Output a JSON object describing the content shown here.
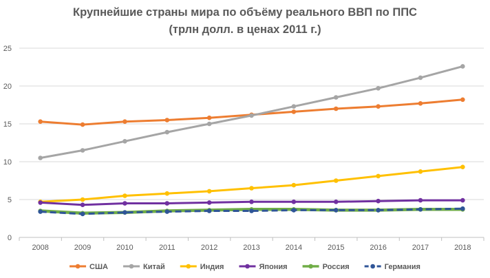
{
  "chart_data": {
    "type": "line",
    "title": "Крупнейшие страны мира по объёму реального ВВП по ППС",
    "subtitle": "(трлн долл. в ценах 2011 г.)",
    "xlabel": "",
    "ylabel": "",
    "x": [
      "2008",
      "2009",
      "2010",
      "2011",
      "2012",
      "2013",
      "2014",
      "2015",
      "2016",
      "2017",
      "2018"
    ],
    "ylim": [
      0,
      25
    ],
    "yticks": [
      "0",
      "5",
      "10",
      "15",
      "20",
      "25"
    ],
    "grid": true,
    "legend_position": "bottom",
    "series": [
      {
        "name": "США",
        "color": "#ED7D31",
        "dash": "solid",
        "width": 3,
        "values": [
          15.3,
          14.9,
          15.3,
          15.5,
          15.8,
          16.2,
          16.6,
          17.0,
          17.3,
          17.7,
          18.2
        ]
      },
      {
        "name": "Китай",
        "color": "#A5A5A5",
        "dash": "solid",
        "width": 3,
        "values": [
          10.5,
          11.5,
          12.7,
          13.9,
          15.0,
          16.1,
          17.3,
          18.5,
          19.7,
          21.1,
          22.6
        ]
      },
      {
        "name": "Индия",
        "color": "#FFC000",
        "dash": "solid",
        "width": 3,
        "values": [
          4.7,
          5.0,
          5.5,
          5.8,
          6.1,
          6.5,
          6.9,
          7.5,
          8.1,
          8.7,
          9.3
        ]
      },
      {
        "name": "Япония",
        "color": "#7030A0",
        "dash": "solid",
        "width": 3,
        "values": [
          4.6,
          4.3,
          4.5,
          4.5,
          4.6,
          4.7,
          4.7,
          4.7,
          4.8,
          4.9,
          4.9
        ]
      },
      {
        "name": "Россия",
        "color": "#70AD47",
        "dash": "solid",
        "width": 4.5,
        "values": [
          3.5,
          3.2,
          3.3,
          3.5,
          3.6,
          3.7,
          3.7,
          3.6,
          3.6,
          3.7,
          3.7
        ]
      },
      {
        "name": "Германия",
        "color": "#2F5597",
        "dash": "dashed",
        "width": 3,
        "values": [
          3.4,
          3.1,
          3.3,
          3.4,
          3.5,
          3.5,
          3.6,
          3.6,
          3.6,
          3.7,
          3.8
        ]
      }
    ]
  }
}
